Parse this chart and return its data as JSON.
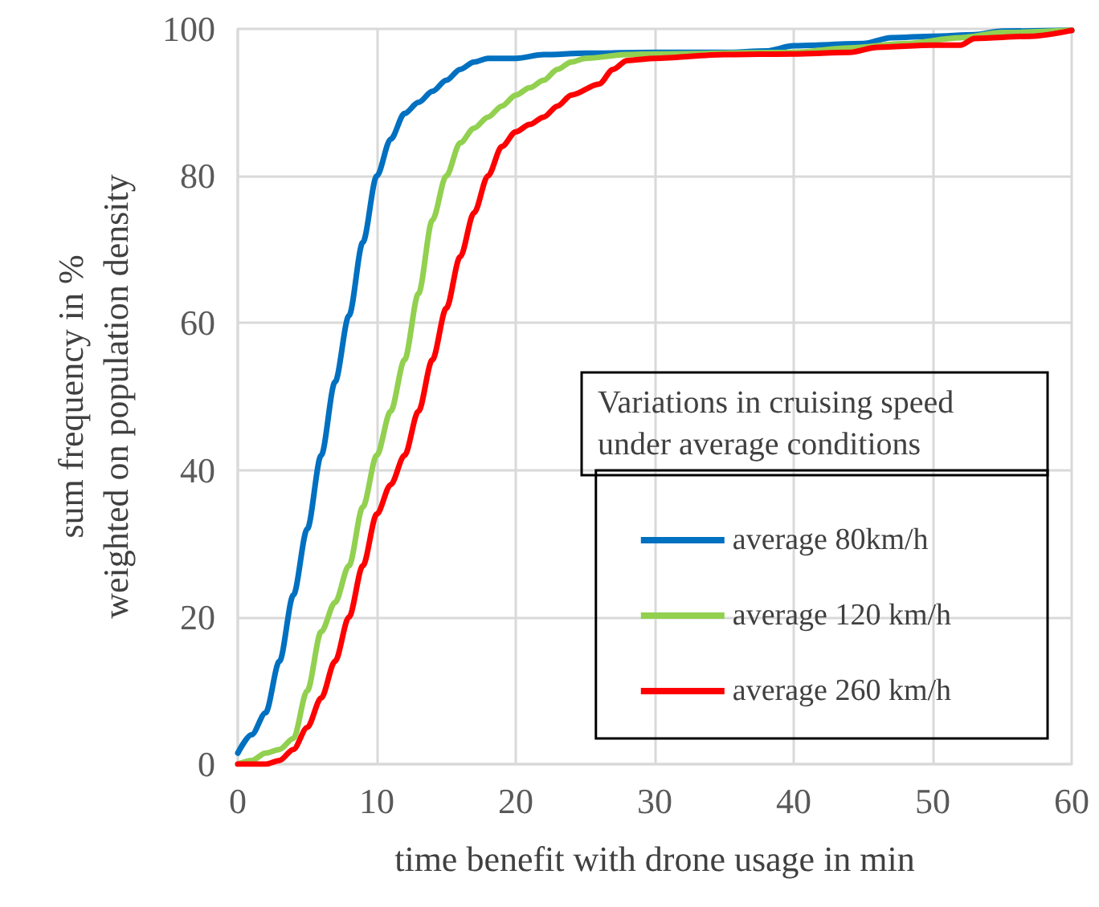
{
  "chart_data": {
    "type": "line",
    "xlabel": "time benefit with drone usage in min",
    "ylabel": "sum frequency in %\nweighted on population density",
    "legend_title": "Variations in cruising speed under average conditions",
    "xlim": [
      0,
      60
    ],
    "xticks": [
      0,
      10,
      20,
      30,
      40,
      50,
      60
    ],
    "ylim": [
      0,
      100
    ],
    "yticks": [
      0,
      20,
      40,
      60,
      80,
      100
    ],
    "grid": true,
    "legend": "bottom right",
    "marker": "none",
    "line_style": "solid",
    "series": [
      {
        "name": "average 80km/h",
        "color": "#0070c0",
        "x": [
          0,
          1,
          2,
          3,
          4,
          5,
          6,
          7,
          8,
          9,
          10,
          11,
          12,
          13,
          14,
          15,
          16,
          17,
          18,
          20,
          22,
          25,
          30,
          35,
          38,
          40,
          45,
          47,
          50,
          53,
          55,
          60
        ],
        "values": [
          1.5,
          4,
          7,
          14,
          23,
          32,
          42,
          52,
          61,
          71,
          80,
          85,
          88.5,
          90,
          91.5,
          93,
          94.5,
          95.5,
          96,
          96,
          96.5,
          96.7,
          96.8,
          96.8,
          97,
          97.7,
          98,
          98.8,
          99,
          99.2,
          99.7,
          99.8
        ]
      },
      {
        "name": "average 120 km/h",
        "color": "#92d050",
        "x": [
          0,
          1,
          2,
          3,
          4,
          5,
          6,
          7,
          8,
          9,
          10,
          11,
          12,
          13,
          14,
          15,
          16,
          17,
          18,
          19,
          20,
          21,
          22,
          23,
          24,
          25,
          28,
          30,
          40,
          44,
          48,
          52,
          55,
          60
        ],
        "values": [
          0,
          0.5,
          1.5,
          2,
          3.5,
          10,
          18,
          22,
          27,
          35,
          42,
          48,
          55,
          64,
          74,
          80,
          84.5,
          86.5,
          88,
          89.5,
          91,
          92,
          93,
          94.5,
          95.5,
          96,
          96.5,
          96.6,
          96.8,
          97.4,
          98,
          98.8,
          99.5,
          99.8
        ]
      },
      {
        "name": "average 260 km/h",
        "color": "#ff0000",
        "x": [
          0,
          1,
          2,
          3,
          4,
          5,
          6,
          7,
          8,
          9,
          10,
          11,
          12,
          13,
          14,
          15,
          16,
          17,
          18,
          19,
          20,
          21,
          22,
          23,
          24,
          26,
          27,
          28,
          30,
          35,
          40,
          44,
          46,
          50,
          52,
          53,
          57,
          60
        ],
        "values": [
          0,
          0,
          0,
          0.5,
          2,
          5,
          9,
          14,
          20,
          27,
          34,
          38,
          42,
          48,
          55,
          62,
          69,
          75,
          80,
          84,
          86,
          87,
          88,
          89.5,
          91,
          92.5,
          94.5,
          95.7,
          96,
          96.5,
          96.6,
          96.8,
          97.5,
          97.8,
          97.8,
          98.7,
          99,
          99.8
        ]
      }
    ]
  }
}
